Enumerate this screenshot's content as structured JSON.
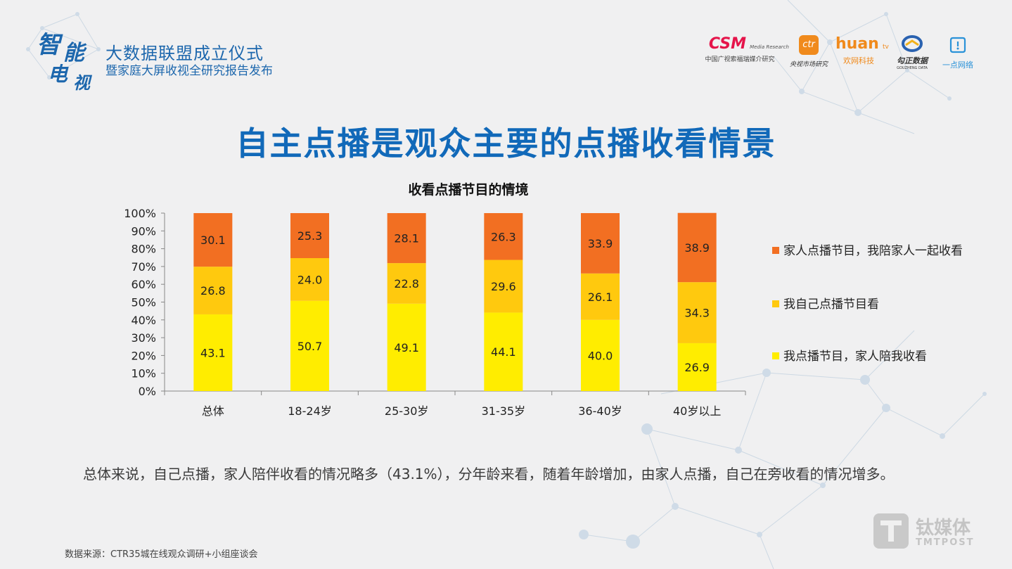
{
  "header": {
    "logo_calligraphy": [
      "智",
      "能",
      "电",
      "视"
    ],
    "event_line1": "大数据联盟成立仪式",
    "event_line2": "暨家庭大屏收视全研究报告发布"
  },
  "partners": [
    {
      "name": "CSM",
      "sub": "中国广视索福瑞媒介研究",
      "tag": "Media Research",
      "color": "#e5144a"
    },
    {
      "name": "ctr",
      "sub": "央视市场研究",
      "color": "#f08a1c"
    },
    {
      "name": "huan",
      "sub": "欢网科技",
      "tag": "tv",
      "color": "#f08a1c"
    },
    {
      "name": "勾正数据",
      "sub": "GOUZHENG DATA",
      "color": "#333333"
    },
    {
      "name": "一点网络",
      "color": "#2a92d8"
    }
  ],
  "title": "自主点播是观众主要的点播收看情景",
  "chart_data": {
    "type": "bar",
    "stacked": true,
    "title": "收看点播节目的情境",
    "categories": [
      "总体",
      "18-24岁",
      "25-30岁",
      "31-35岁",
      "36-40岁",
      "40岁以上"
    ],
    "series": [
      {
        "name": "我点播节目，家人陪我收看",
        "values": [
          43.1,
          50.7,
          49.1,
          44.1,
          40.0,
          26.9
        ],
        "labels": [
          "43.1",
          "50.7",
          "49.1",
          "44.1",
          "40.0",
          "26.9"
        ],
        "color": "#ffed00"
      },
      {
        "name": "我自己点播节目看",
        "values": [
          26.8,
          24.0,
          22.8,
          29.6,
          26.1,
          34.3
        ],
        "labels": [
          "26.8",
          "24.0",
          "22.8",
          "29.6",
          "26.1",
          "34.3"
        ],
        "color": "#ffc90e"
      },
      {
        "name": "家人点播节目，我陪家人一起收看",
        "values": [
          30.1,
          25.3,
          28.1,
          26.3,
          33.9,
          38.9
        ],
        "labels": [
          "30.1",
          "25.3",
          "28.1",
          "26.3",
          "33.9",
          "38.9"
        ],
        "color": "#f26f22"
      }
    ],
    "legend_order": [
      2,
      1,
      0
    ],
    "yticks": [
      "0%",
      "10%",
      "20%",
      "30%",
      "40%",
      "50%",
      "60%",
      "70%",
      "80%",
      "90%",
      "100%"
    ],
    "ylim": [
      0,
      100
    ],
    "legend_position": "right"
  },
  "summary": "总体来说，自己点播，家人陪伴收看的情况略多（43.1%），分年龄来看，随着年龄增加，由家人点播，自己在旁收看的情况增多。",
  "source": "数据来源：CTR35城在线观众调研+小组座谈会",
  "watermark": {
    "name": "钛媒体",
    "sub": "TMTPOST"
  }
}
